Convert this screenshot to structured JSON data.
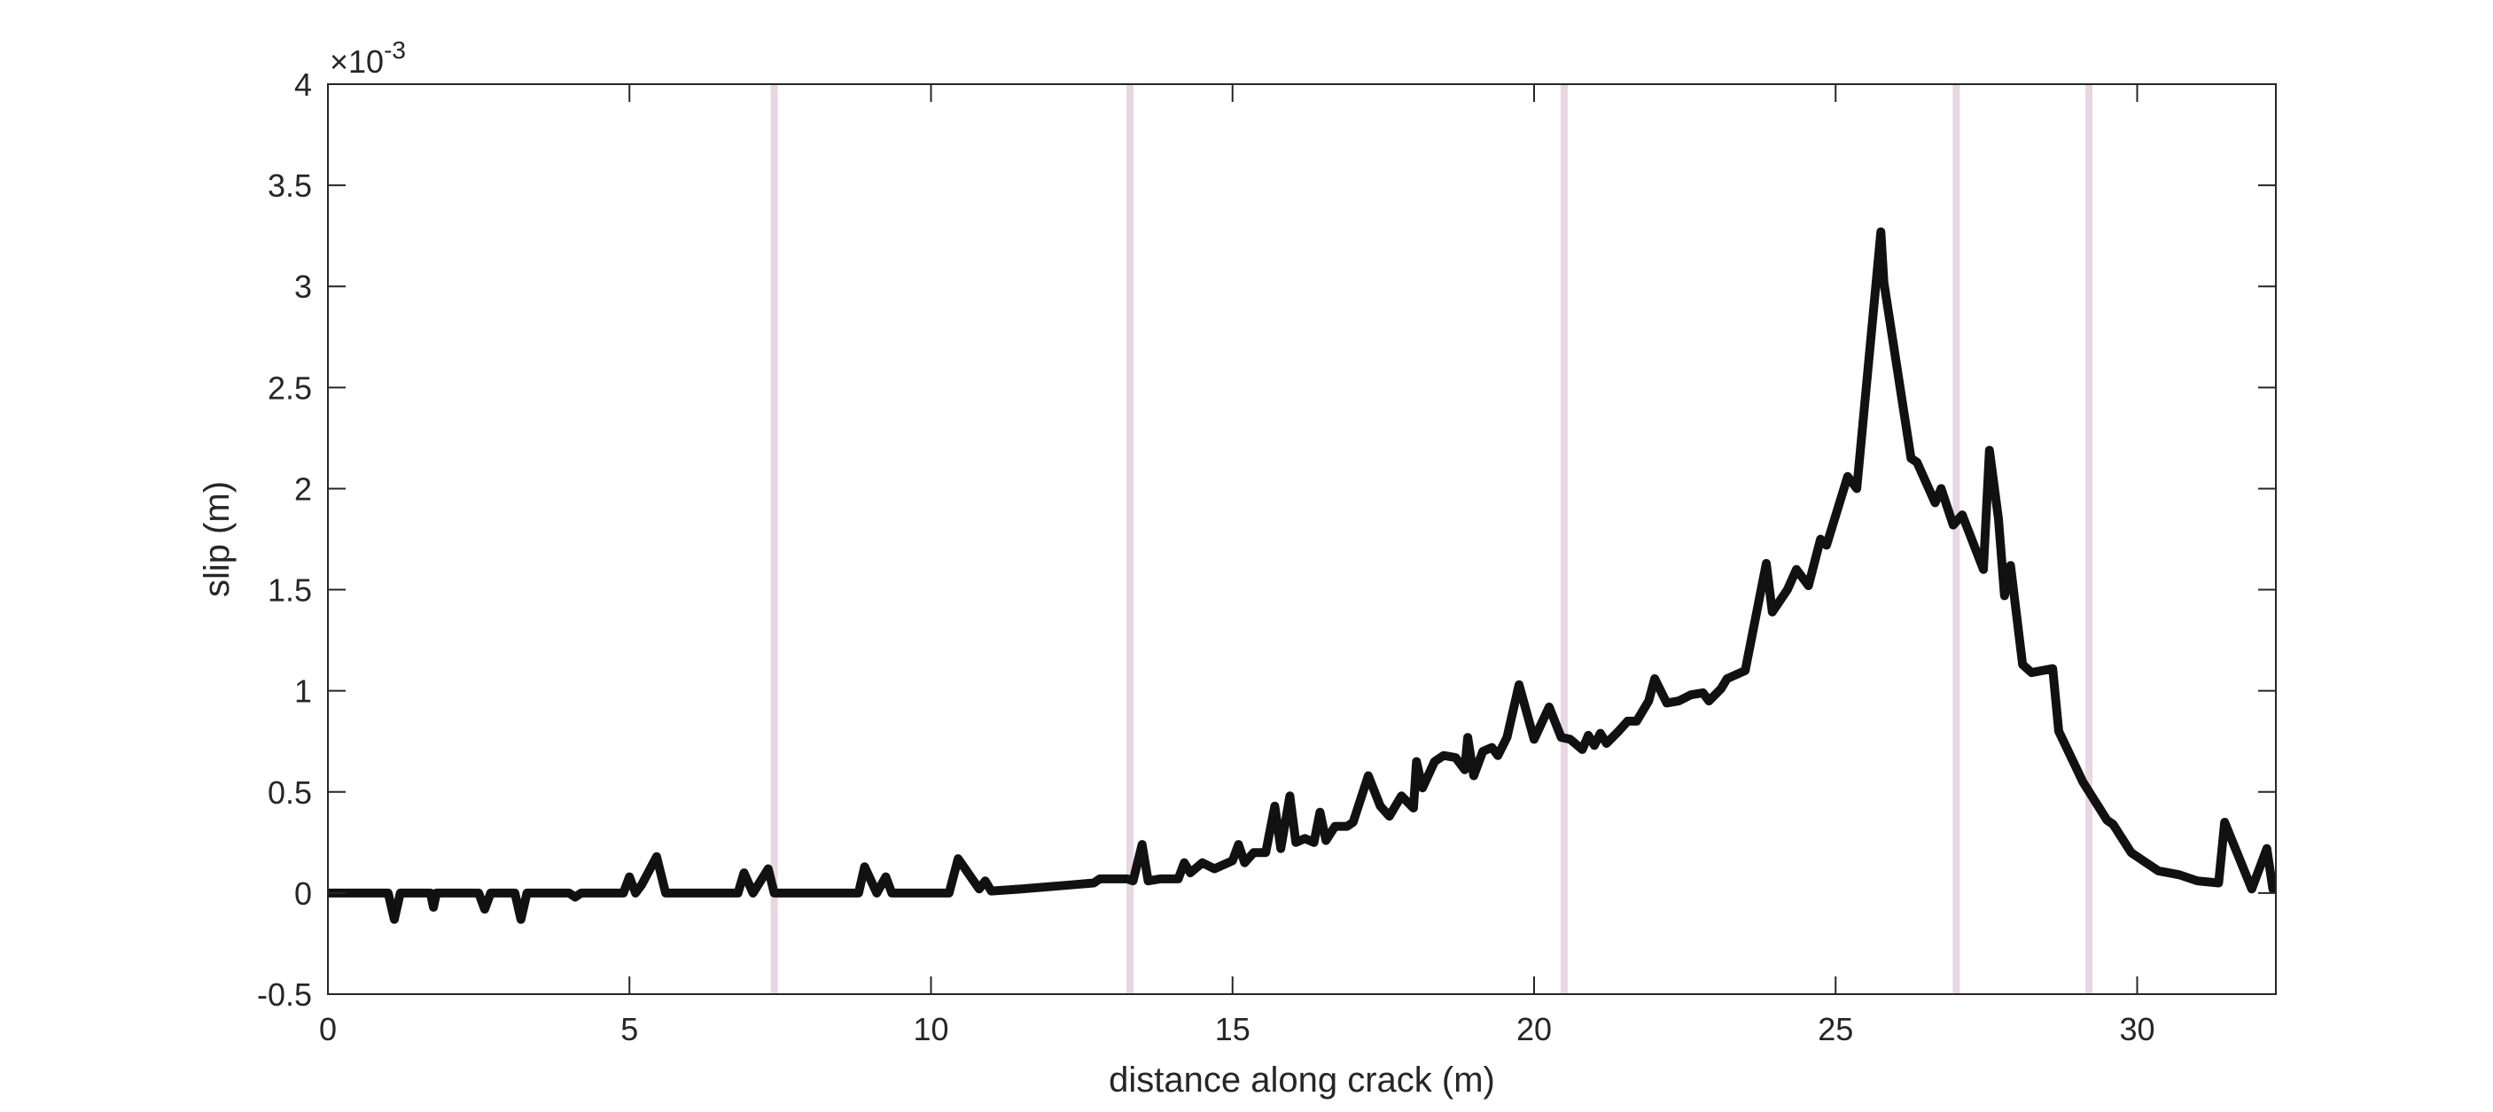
{
  "chart_data": {
    "type": "line",
    "title": "",
    "xlabel": "distance along crack (m)",
    "ylabel": "slip (m)",
    "y_exponent_label": "×10",
    "y_exponent": "-3",
    "xlim": [
      0,
      32.3
    ],
    "ylim": [
      -0.0005,
      0.004
    ],
    "xticks": [
      0,
      5,
      10,
      15,
      20,
      25,
      30
    ],
    "xtick_labels": [
      "0",
      "5",
      "10",
      "15",
      "20",
      "25",
      "30"
    ],
    "yticks": [
      -0.0005,
      0,
      0.0005,
      0.001,
      0.0015,
      0.002,
      0.0025,
      0.003,
      0.0035,
      0.004
    ],
    "ytick_labels": [
      "-0.5",
      "0",
      "0.5",
      "1",
      "1.5",
      "2",
      "2.5",
      "3",
      "3.5",
      "4"
    ],
    "grid": false,
    "line_color": "#111111",
    "vline_color": "#e8d6e2",
    "vertical_lines_x": [
      7.4,
      13.3,
      20.5,
      27.0,
      29.2
    ],
    "series": [
      {
        "points": [
          [
            0.0,
            0.0
          ],
          [
            0.5,
            0.0
          ],
          [
            1.0,
            0.0
          ],
          [
            1.1,
            -0.00013
          ],
          [
            1.2,
            0.0
          ],
          [
            1.7,
            0.0
          ],
          [
            1.75,
            -7e-05
          ],
          [
            1.8,
            0.0
          ],
          [
            2.5,
            0.0
          ],
          [
            2.6,
            -8e-05
          ],
          [
            2.7,
            0.0
          ],
          [
            3.1,
            0.0
          ],
          [
            3.2,
            -0.00013
          ],
          [
            3.3,
            0.0
          ],
          [
            4.0,
            0.0
          ],
          [
            4.1,
            -2e-05
          ],
          [
            4.2,
            0.0
          ],
          [
            4.9,
            0.0
          ],
          [
            5.0,
            8e-05
          ],
          [
            5.1,
            0.0
          ],
          [
            5.2,
            4e-05
          ],
          [
            5.45,
            0.00018
          ],
          [
            5.6,
            0.0
          ],
          [
            6.8,
            0.0
          ],
          [
            6.9,
            0.0001
          ],
          [
            7.05,
            0.0
          ],
          [
            7.3,
            0.00012
          ],
          [
            7.4,
            0.0
          ],
          [
            8.8,
            0.0
          ],
          [
            8.9,
            0.00013
          ],
          [
            9.1,
            0.0
          ],
          [
            9.25,
            8e-05
          ],
          [
            9.35,
            0.0
          ],
          [
            10.3,
            0.0
          ],
          [
            10.45,
            0.00017
          ],
          [
            10.8,
            2e-05
          ],
          [
            10.9,
            6e-05
          ],
          [
            11.0,
            1e-05
          ],
          [
            11.5,
            2e-05
          ],
          [
            12.3,
            4e-05
          ],
          [
            12.7,
            5e-05
          ],
          [
            12.8,
            7e-05
          ],
          [
            13.25,
            7e-05
          ],
          [
            13.35,
            6e-05
          ],
          [
            13.5,
            0.00024
          ],
          [
            13.6,
            6e-05
          ],
          [
            13.8,
            7e-05
          ],
          [
            14.1,
            7e-05
          ],
          [
            14.2,
            0.00015
          ],
          [
            14.3,
            0.0001
          ],
          [
            14.5,
            0.00015
          ],
          [
            14.7,
            0.00012
          ],
          [
            15.0,
            0.00016
          ],
          [
            15.1,
            0.00024
          ],
          [
            15.2,
            0.00015
          ],
          [
            15.35,
            0.0002
          ],
          [
            15.55,
            0.0002
          ],
          [
            15.7,
            0.00043
          ],
          [
            15.8,
            0.00022
          ],
          [
            15.95,
            0.00048
          ],
          [
            16.05,
            0.00025
          ],
          [
            16.2,
            0.00027
          ],
          [
            16.35,
            0.00025
          ],
          [
            16.45,
            0.0004
          ],
          [
            16.55,
            0.00026
          ],
          [
            16.7,
            0.00033
          ],
          [
            16.9,
            0.00033
          ],
          [
            17.0,
            0.00035
          ],
          [
            17.25,
            0.00058
          ],
          [
            17.45,
            0.00043
          ],
          [
            17.6,
            0.00038
          ],
          [
            17.8,
            0.00048
          ],
          [
            18.0,
            0.00042
          ],
          [
            18.05,
            0.00065
          ],
          [
            18.15,
            0.00052
          ],
          [
            18.35,
            0.00065
          ],
          [
            18.5,
            0.00068
          ],
          [
            18.7,
            0.00067
          ],
          [
            18.85,
            0.00061
          ],
          [
            18.9,
            0.00077
          ],
          [
            19.0,
            0.00058
          ],
          [
            19.15,
            0.0007
          ],
          [
            19.3,
            0.00072
          ],
          [
            19.4,
            0.00068
          ],
          [
            19.55,
            0.00077
          ],
          [
            19.75,
            0.00103
          ],
          [
            20.0,
            0.00076
          ],
          [
            20.25,
            0.00092
          ],
          [
            20.45,
            0.00077
          ],
          [
            20.6,
            0.00076
          ],
          [
            20.8,
            0.00071
          ],
          [
            20.9,
            0.00078
          ],
          [
            21.0,
            0.00073
          ],
          [
            21.1,
            0.00079
          ],
          [
            21.2,
            0.00074
          ],
          [
            21.4,
            0.0008
          ],
          [
            21.55,
            0.00085
          ],
          [
            21.7,
            0.00085
          ],
          [
            21.9,
            0.00095
          ],
          [
            22.0,
            0.00106
          ],
          [
            22.2,
            0.00094
          ],
          [
            22.4,
            0.00095
          ],
          [
            22.6,
            0.00098
          ],
          [
            22.8,
            0.00099
          ],
          [
            22.9,
            0.00095
          ],
          [
            23.1,
            0.00101
          ],
          [
            23.2,
            0.00106
          ],
          [
            23.5,
            0.0011
          ],
          [
            23.85,
            0.00163
          ],
          [
            23.95,
            0.00139
          ],
          [
            24.2,
            0.0015
          ],
          [
            24.35,
            0.0016
          ],
          [
            24.55,
            0.00152
          ],
          [
            24.75,
            0.00175
          ],
          [
            24.85,
            0.00172
          ],
          [
            25.2,
            0.00206
          ],
          [
            25.35,
            0.002
          ],
          [
            25.75,
            0.00327
          ],
          [
            25.8,
            0.00302
          ],
          [
            26.25,
            0.00215
          ],
          [
            26.35,
            0.00213
          ],
          [
            26.65,
            0.00193
          ],
          [
            26.75,
            0.002
          ],
          [
            26.95,
            0.00182
          ],
          [
            27.1,
            0.00187
          ],
          [
            27.45,
            0.0016
          ],
          [
            27.55,
            0.00219
          ],
          [
            27.7,
            0.00185
          ],
          [
            27.8,
            0.00147
          ],
          [
            27.9,
            0.00162
          ],
          [
            28.1,
            0.00113
          ],
          [
            28.25,
            0.00109
          ],
          [
            28.6,
            0.00111
          ],
          [
            28.7,
            0.0008
          ],
          [
            29.1,
            0.00055
          ],
          [
            29.5,
            0.00036
          ],
          [
            29.6,
            0.00034
          ],
          [
            29.9,
            0.0002
          ],
          [
            30.05,
            0.00017
          ],
          [
            30.35,
            0.00011
          ],
          [
            30.7,
            9e-05
          ],
          [
            31.0,
            6e-05
          ],
          [
            31.35,
            5e-05
          ],
          [
            31.45,
            0.00035
          ],
          [
            31.9,
            2e-05
          ],
          [
            32.15,
            0.00022
          ],
          [
            32.25,
            2e-05
          ],
          [
            32.6,
            1e-05
          ],
          [
            33.3,
            0.0
          ]
        ]
      }
    ]
  }
}
